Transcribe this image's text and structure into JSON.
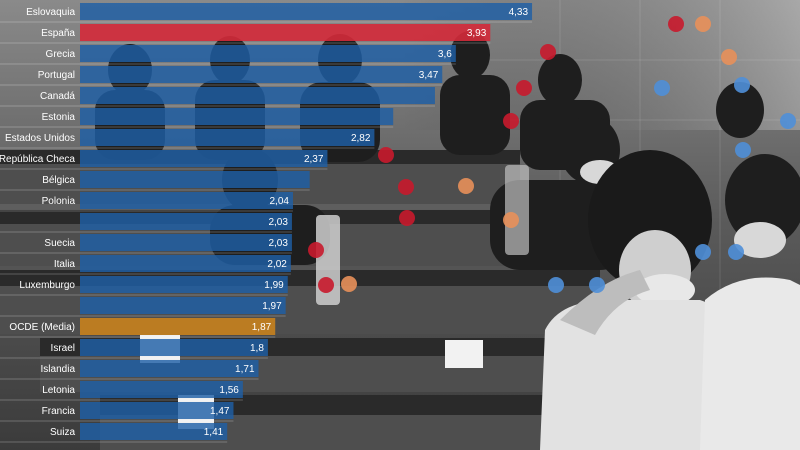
{
  "colors": {
    "default_bar": "#1f5fa6",
    "highlight_bar": "#d42a3a",
    "average_bar": "#c8821e",
    "dot_red": "#c8192c",
    "dot_orange": "#e8905a",
    "dot_blue": "#4f8fd8"
  },
  "chart_data": {
    "type": "bar",
    "orientation": "horizontal",
    "title": "",
    "xlabel": "",
    "ylabel": "",
    "xlim": [
      0,
      4.5
    ],
    "grid": false,
    "legend": "none",
    "categories": [
      "Eslovaquia",
      "España",
      "Grecia",
      "Portugal",
      "Canadá",
      "Estonia",
      "Estados Unidos",
      "República Checa",
      "Bélgica",
      "Polonia",
      "",
      "Suecia",
      "Italia",
      "Luxemburgo",
      "",
      "OCDE (Media)",
      "Israel",
      "Islandia",
      "Letonia",
      "Francia",
      "Suiza"
    ],
    "values": [
      4.33,
      3.93,
      3.6,
      3.47,
      3.4,
      3.0,
      2.82,
      2.37,
      2.2,
      2.04,
      2.03,
      2.03,
      2.02,
      1.99,
      1.97,
      1.87,
      1.8,
      1.71,
      1.56,
      1.47,
      1.41
    ],
    "value_labels": [
      "4,33",
      "3,93",
      "3,6",
      "3,47",
      "",
      "",
      "2,82",
      "2,37",
      "",
      "2,04",
      "2,03",
      "2,03",
      "2,02",
      "1,99",
      "1,97",
      "1,87",
      "1,8",
      "1,71",
      "1,56",
      "1,47",
      "1,41"
    ],
    "highlight": {
      "España": "highlight_bar",
      "OCDE (Media)": "average_bar"
    }
  }
}
